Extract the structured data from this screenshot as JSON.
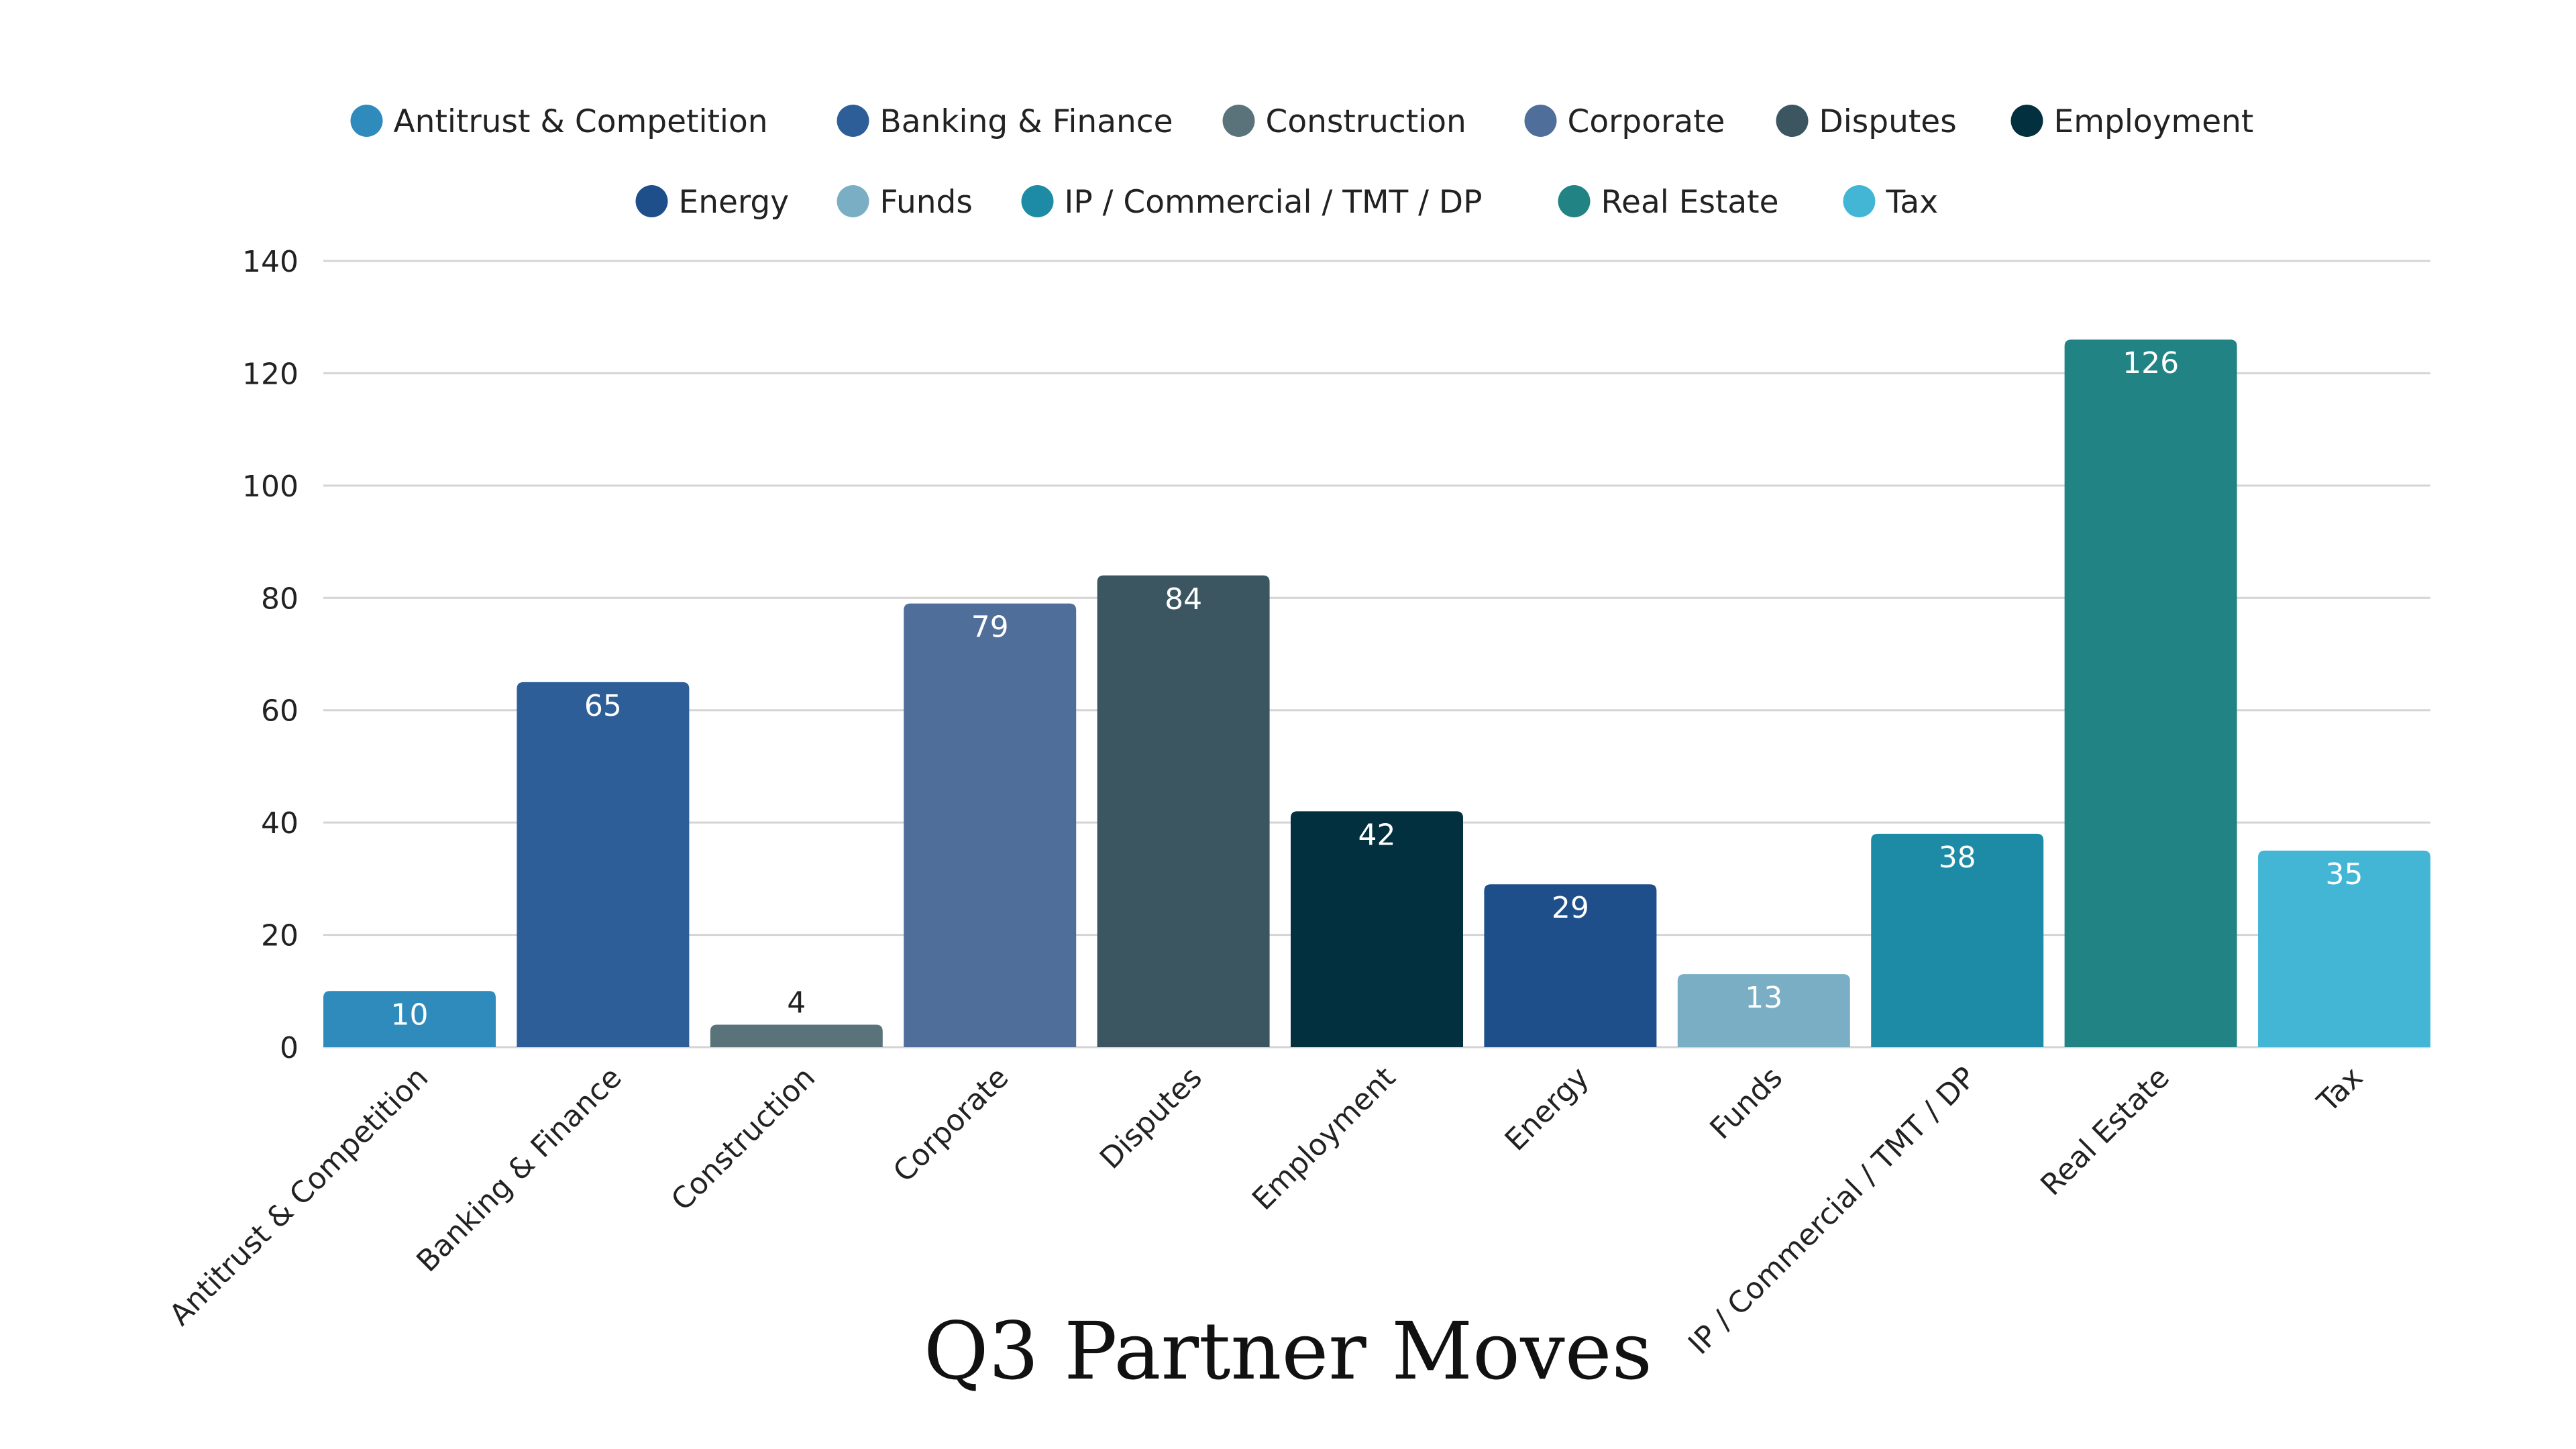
{
  "chart_data": {
    "type": "bar",
    "title": "Q3 Partner Moves",
    "xlabel": "",
    "ylabel": "",
    "ylim": [
      0,
      140
    ],
    "yticks": [
      0,
      20,
      40,
      60,
      80,
      100,
      120,
      140
    ],
    "grid": true,
    "legend_position": "top-center",
    "categories": [
      "Antitrust & Competition",
      "Banking & Finance",
      "Construction",
      "Corporate",
      "Disputes",
      "Employment",
      "Energy",
      "Funds",
      "IP / Commercial / TMT / DP",
      "Real Estate",
      "Tax"
    ],
    "values": [
      10,
      65,
      4,
      79,
      84,
      42,
      29,
      13,
      38,
      126,
      35
    ],
    "colors": [
      "#2e8bbb",
      "#2e5e98",
      "#5a737a",
      "#506e9a",
      "#3b5661",
      "#02303f",
      "#1e4f8a",
      "#7aaec4",
      "#1d8ba5",
      "#228384",
      "#43b6d6"
    ]
  }
}
